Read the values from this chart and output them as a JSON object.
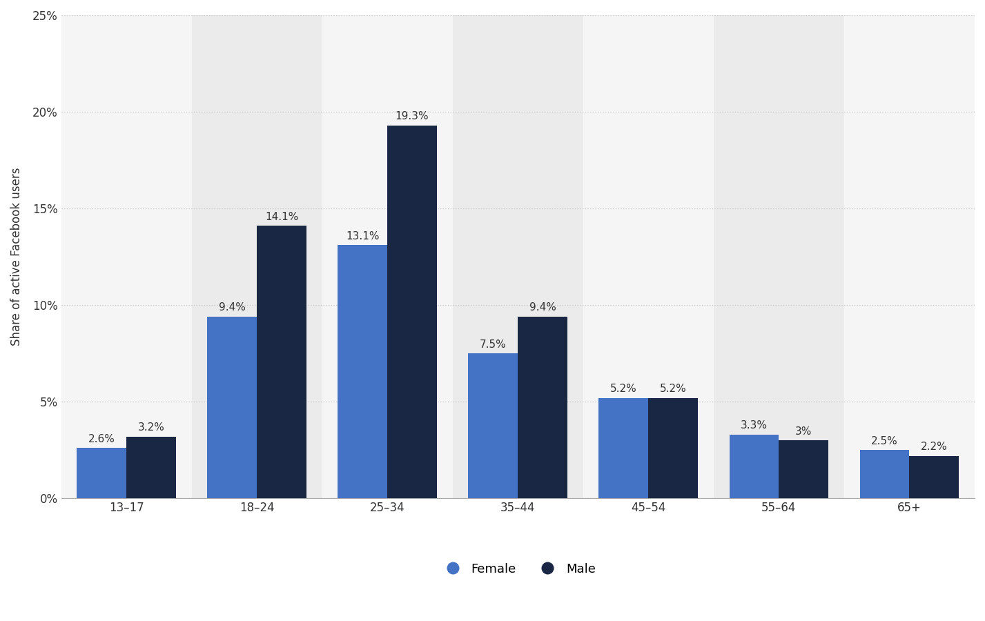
{
  "categories": [
    "13–17",
    "18–24",
    "25–34",
    "35–44",
    "45–54",
    "55–64",
    "65+"
  ],
  "female_values": [
    2.6,
    9.4,
    13.1,
    7.5,
    5.2,
    3.3,
    2.5
  ],
  "male_values": [
    3.2,
    14.1,
    19.3,
    9.4,
    5.2,
    3.0,
    2.2
  ],
  "female_color": "#4472C4",
  "male_color": "#1A2744",
  "ylabel": "Share of active Facebook users",
  "ylim": [
    0,
    25
  ],
  "yticks": [
    0,
    5,
    10,
    15,
    20,
    25
  ],
  "ytick_labels": [
    "0%",
    "5%",
    "10%",
    "15%",
    "20%",
    "25%"
  ],
  "background_color": "#ffffff",
  "plot_bg_color": "#f5f5f5",
  "grid_color": "#cccccc",
  "bar_width": 0.38,
  "legend_female": "Female",
  "legend_male": "Male",
  "shaded_groups": [
    1,
    3,
    5
  ],
  "label_fontsize": 11,
  "tick_fontsize": 12,
  "ylabel_fontsize": 12
}
